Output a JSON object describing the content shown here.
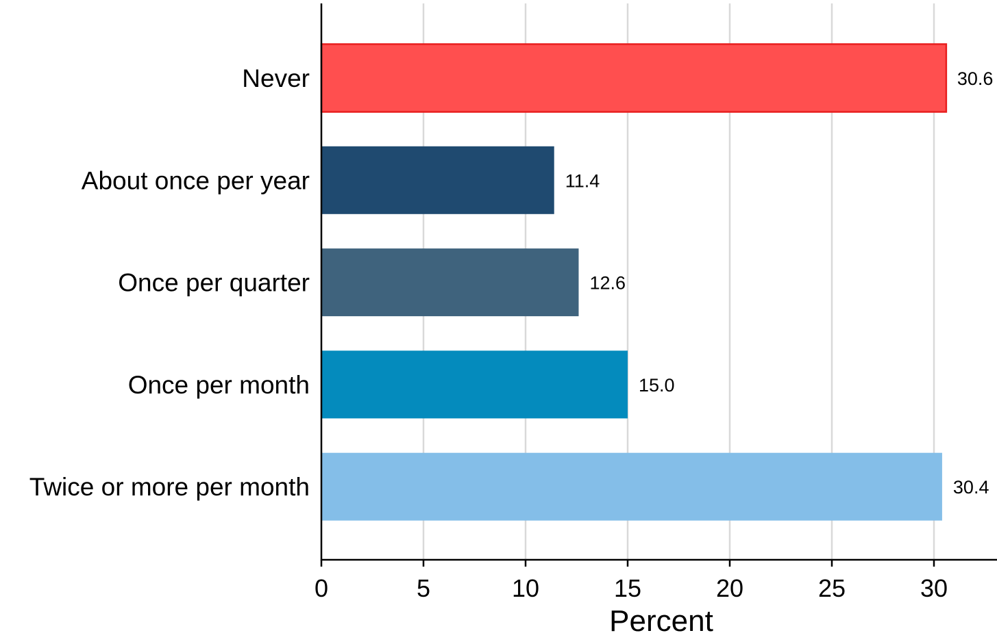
{
  "chart_data": {
    "type": "bar",
    "orientation": "horizontal",
    "categories": [
      "Never",
      "About once per year",
      "Once per quarter",
      "Once per month",
      "Twice or more per month"
    ],
    "values": [
      30.6,
      11.4,
      12.6,
      15.0,
      30.4
    ],
    "value_labels": [
      "30.6",
      "11.4",
      "12.6",
      "15.0",
      "30.4"
    ],
    "colors": [
      "#ff4f4f",
      "#1f4a70",
      "#3f637d",
      "#048bbd",
      "#84bee8"
    ],
    "highlight_outline": [
      "#e81f1f",
      null,
      null,
      null,
      null
    ],
    "title": "",
    "xlabel": "Percent",
    "ylabel": "",
    "xlim": [
      0,
      33
    ],
    "xticks": [
      0,
      5,
      10,
      15,
      20,
      25,
      30
    ],
    "xtick_labels": [
      "0",
      "5",
      "10",
      "15",
      "20",
      "25",
      "30"
    ],
    "grid": "vertical",
    "legend": "none"
  }
}
